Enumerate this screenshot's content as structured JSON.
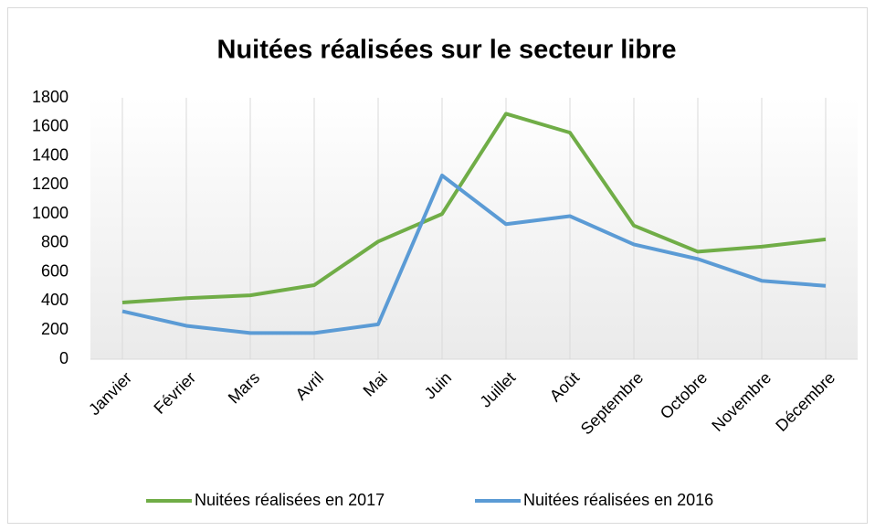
{
  "chart_data": {
    "type": "line",
    "title": "Nuitées réalisées sur le secteur libre",
    "categories": [
      "Janvier",
      "Février",
      "Mars",
      "Avril",
      "Mai",
      "Juin",
      "Juillet",
      "Août",
      "Septembre",
      "Octobre",
      "Novembre",
      "Décembre"
    ],
    "series": [
      {
        "name": "Nuitées réalisées en 2017",
        "color": "#70ad47",
        "values": [
          390,
          420,
          440,
          510,
          810,
          1000,
          1690,
          1560,
          920,
          740,
          775,
          825
        ]
      },
      {
        "name": "Nuitées réalisées en 2016",
        "color": "#5b9bd5",
        "values": [
          330,
          230,
          180,
          180,
          240,
          1265,
          930,
          985,
          790,
          690,
          540,
          505
        ]
      }
    ],
    "ylim": [
      0,
      1800
    ],
    "yticks": [
      0,
      200,
      400,
      600,
      800,
      1000,
      1200,
      1400,
      1600,
      1800
    ],
    "grid": "vertical",
    "legend": "bottom"
  }
}
